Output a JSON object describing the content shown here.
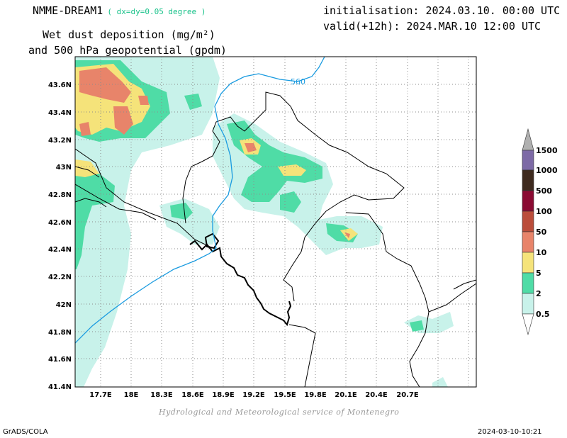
{
  "header": {
    "model": "NMME-DREAM1",
    "resolution": "( dx=dy=0.05 degree )",
    "title_line1": "Wet dust deposition (mg/m²)",
    "title_line2": "and 500 hPa geopotential (gpdm)",
    "initialisation": "initialisation: 2024.03.10. 00:00 UTC",
    "valid": "valid(+12h): 2024.MAR.10 12:00 UTC"
  },
  "map": {
    "lat_labels": [
      "43.6N",
      "43.4N",
      "43.2N",
      "43N",
      "42.8N",
      "42.6N",
      "42.4N",
      "42.2N",
      "42N",
      "41.8N",
      "41.6N",
      "41.4N"
    ],
    "lon_labels": [
      "17.7E",
      "18E",
      "18.3E",
      "18.6E",
      "18.9E",
      "19.2E",
      "19.5E",
      "19.8E",
      "20.1E",
      "20.4E",
      "20.7E"
    ],
    "contour_label": "560",
    "contour_color": "#1a9be0",
    "gridlines": "dotted"
  },
  "legend": {
    "levels": [
      "1500",
      "1000",
      "500",
      "100",
      "50",
      "10",
      "5",
      "2",
      "0.5"
    ],
    "colors": [
      "#7d6aa6",
      "#3e2a1e",
      "#8a0a32",
      "#bb4d3b",
      "#e8846a",
      "#f5e37a",
      "#4fdca6",
      "#c8f2ea"
    ],
    "top_arrow_color": "#b0b0b0"
  },
  "footer": {
    "credit": "Hydrological and Meteorological service of Montenegro",
    "software": "GrADS/COLA",
    "timestamp": "2024-03-10-10:21"
  }
}
